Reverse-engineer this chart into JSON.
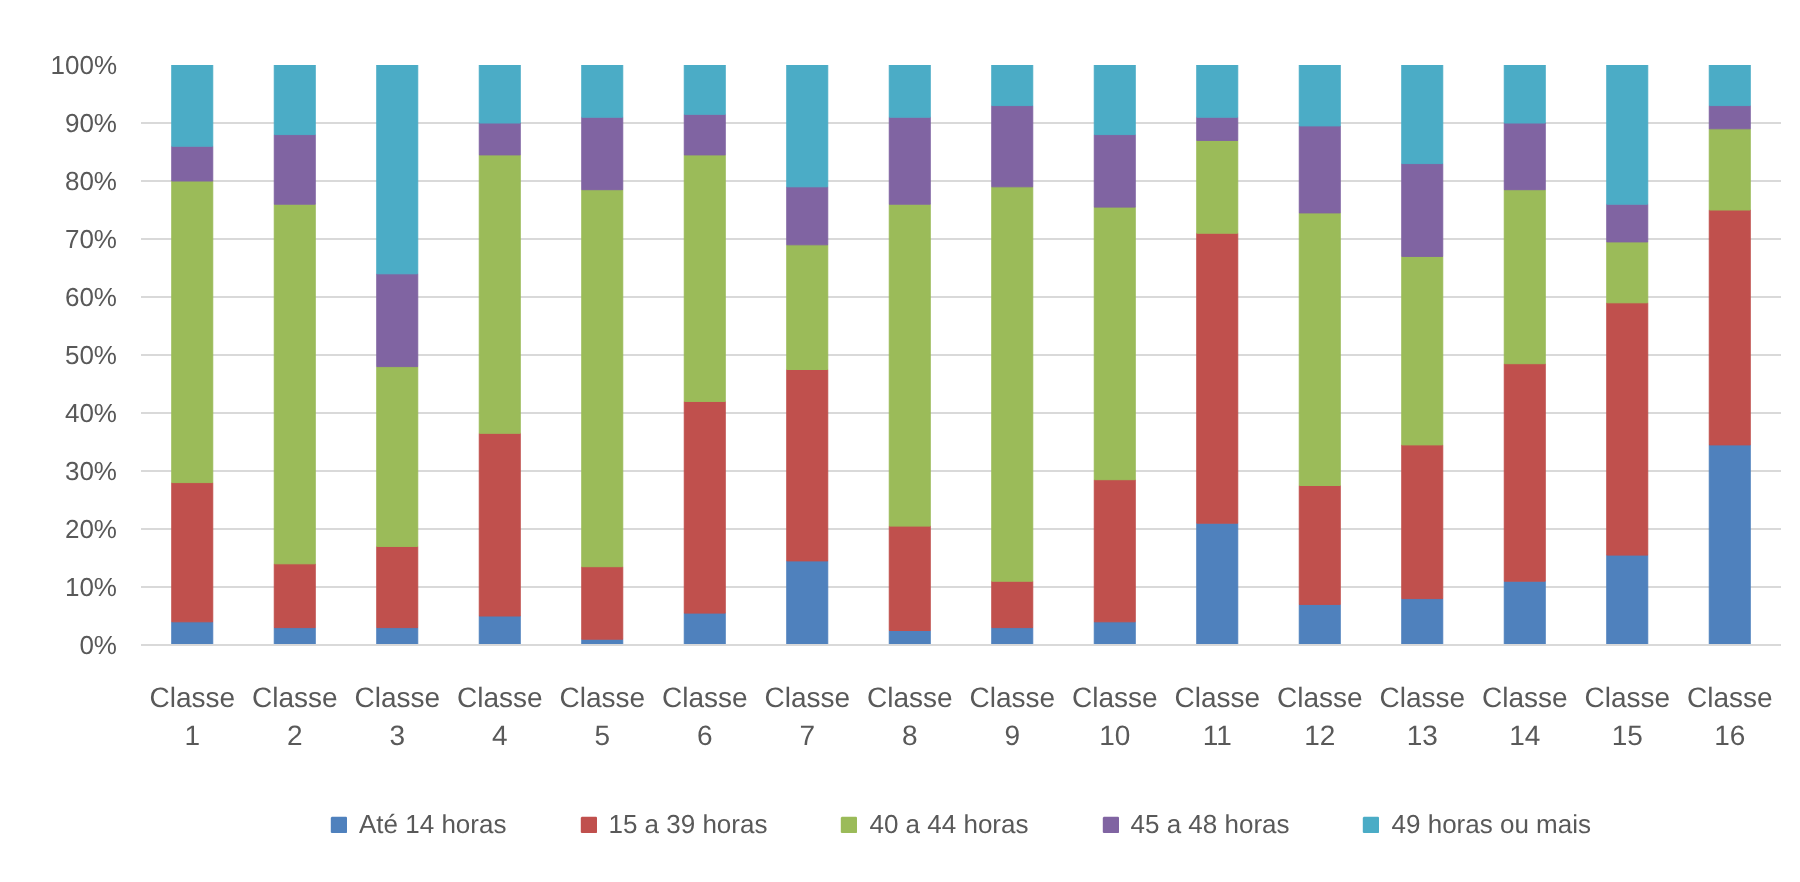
{
  "chart_data": {
    "type": "bar",
    "stacked": true,
    "categories": [
      "Classe 1",
      "Classe 2",
      "Classe 3",
      "Classe 4",
      "Classe 5",
      "Classe 6",
      "Classe 7",
      "Classe 8",
      "Classe 9",
      "Classe 10",
      "Classe 11",
      "Classe 12",
      "Classe 13",
      "Classe 14",
      "Classe 15",
      "Classe 16"
    ],
    "series": [
      {
        "name": "Até 14 horas",
        "color": "#4f81bd",
        "values": [
          4,
          3,
          3,
          5,
          1,
          5.5,
          14.5,
          2.5,
          3,
          4,
          21,
          7,
          8,
          11,
          15.5,
          34.5
        ]
      },
      {
        "name": "15 a 39 horas",
        "color": "#c0504d",
        "values": [
          24,
          11,
          14,
          31.5,
          12.5,
          36.5,
          33,
          18,
          8,
          24.5,
          50,
          20.5,
          26.5,
          37.5,
          43.5,
          40.5
        ]
      },
      {
        "name": "40 a 44 horas",
        "color": "#9bbb59",
        "values": [
          52,
          62,
          31,
          48,
          65,
          42.5,
          21.5,
          55.5,
          68,
          47,
          16,
          47,
          32.5,
          30,
          10.5,
          14
        ]
      },
      {
        "name": "45 a 48 horas",
        "color": "#8064a2",
        "values": [
          6,
          12,
          16,
          5.5,
          12.5,
          7,
          10,
          15,
          14,
          12.5,
          4,
          15,
          16,
          11.5,
          6.5,
          4
        ]
      },
      {
        "name": "49 horas ou mais",
        "color": "#4bacc6",
        "values": [
          14,
          12,
          36,
          10,
          9,
          8.5,
          21,
          9,
          7,
          12,
          9,
          10.5,
          17,
          10,
          24,
          7
        ]
      }
    ],
    "ylim": [
      0,
      100
    ],
    "yticks": [
      {
        "value": 0,
        "label": "0%"
      },
      {
        "value": 10,
        "label": "10%"
      },
      {
        "value": 20,
        "label": "20%"
      },
      {
        "value": 30,
        "label": "30%"
      },
      {
        "value": 40,
        "label": "40%"
      },
      {
        "value": 50,
        "label": "50%"
      },
      {
        "value": 60,
        "label": "60%"
      },
      {
        "value": 70,
        "label": "70%"
      },
      {
        "value": 80,
        "label": "80%"
      },
      {
        "value": 90,
        "label": "90%"
      },
      {
        "value": 100,
        "label": "100%"
      }
    ],
    "grid": "y",
    "legend": "bottom"
  }
}
